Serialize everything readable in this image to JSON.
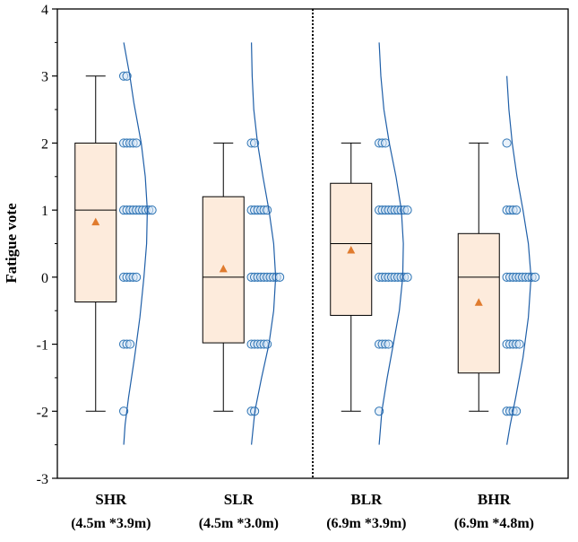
{
  "chart_data": {
    "type": "box",
    "ylabel": "Fatigue vote",
    "xlabel": "",
    "ylim": [
      -3,
      4
    ],
    "yticks": [
      "-3",
      "-2",
      "-1",
      "0",
      "1",
      "2",
      "3",
      "4"
    ],
    "separator_after_index": 1,
    "colors": {
      "box_fill": "#fdebdc",
      "box_stroke": "#000000",
      "mean_marker": "#e07b2e",
      "points": "#2f75b5",
      "curve": "#1f5fa8",
      "separator": "#000000"
    },
    "groups": [
      {
        "name": "SHR",
        "dims": "(4.5m *3.9m)",
        "whisker_low": -2,
        "q1": -0.37,
        "median": 1,
        "q3": 2,
        "whisker_high": 3,
        "mean": 0.82,
        "points": [
          {
            "y": 3,
            "n": 2
          },
          {
            "y": 2,
            "n": 5
          },
          {
            "y": 1,
            "n": 10
          },
          {
            "y": 0,
            "n": 5
          },
          {
            "y": -1,
            "n": 3
          },
          {
            "y": -2,
            "n": 1
          }
        ],
        "density": [
          [
            -2.5,
            0
          ],
          [
            -2.2,
            0.2
          ],
          [
            -1.8,
            0.7
          ],
          [
            -1.2,
            1.6
          ],
          [
            -0.6,
            2.4
          ],
          [
            0.0,
            3.0
          ],
          [
            0.5,
            3.4
          ],
          [
            1.0,
            3.5
          ],
          [
            1.5,
            3.2
          ],
          [
            2.0,
            2.6
          ],
          [
            2.6,
            1.5
          ],
          [
            3.0,
            0.9
          ],
          [
            3.5,
            0
          ]
        ]
      },
      {
        "name": "SLR",
        "dims": "(4.5m *3.0m)",
        "whisker_low": -2,
        "q1": -0.98,
        "median": 0,
        "q3": 1.2,
        "whisker_high": 2,
        "mean": 0.12,
        "points": [
          {
            "y": 2,
            "n": 2
          },
          {
            "y": 1,
            "n": 6
          },
          {
            "y": 0,
            "n": 10
          },
          {
            "y": -1,
            "n": 6
          },
          {
            "y": -2,
            "n": 2
          }
        ],
        "density": [
          [
            -2.5,
            0
          ],
          [
            -2.0,
            0.5
          ],
          [
            -1.5,
            1.5
          ],
          [
            -1.0,
            2.6
          ],
          [
            -0.5,
            3.3
          ],
          [
            0.0,
            3.6
          ],
          [
            0.5,
            3.3
          ],
          [
            1.0,
            2.6
          ],
          [
            1.5,
            1.7
          ],
          [
            2.0,
            0.9
          ],
          [
            2.5,
            0.35
          ],
          [
            3.0,
            0.1
          ],
          [
            3.5,
            0
          ]
        ]
      },
      {
        "name": "BLR",
        "dims": "(6.9m *3.9m)",
        "whisker_low": -2,
        "q1": -0.57,
        "median": 0.5,
        "q3": 1.4,
        "whisker_high": 2,
        "mean": 0.4,
        "points": [
          {
            "y": 2,
            "n": 3
          },
          {
            "y": 1,
            "n": 10
          },
          {
            "y": 0,
            "n": 10
          },
          {
            "y": -1,
            "n": 4
          },
          {
            "y": -2,
            "n": 1
          }
        ],
        "density": [
          [
            -2.5,
            0
          ],
          [
            -2.0,
            0.4
          ],
          [
            -1.5,
            1.2
          ],
          [
            -1.0,
            2.1
          ],
          [
            -0.5,
            3.0
          ],
          [
            0.0,
            3.5
          ],
          [
            0.5,
            3.6
          ],
          [
            1.0,
            3.3
          ],
          [
            1.5,
            2.5
          ],
          [
            2.0,
            1.5
          ],
          [
            2.5,
            0.7
          ],
          [
            3.0,
            0.25
          ],
          [
            3.5,
            0
          ]
        ]
      },
      {
        "name": "BHR",
        "dims": "(6.9m *4.8m)",
        "whisker_low": -2,
        "q1": -1.43,
        "median": 0,
        "q3": 0.65,
        "whisker_high": 2,
        "mean": -0.38,
        "points": [
          {
            "y": 2,
            "n": 1
          },
          {
            "y": 1,
            "n": 4
          },
          {
            "y": 0,
            "n": 10
          },
          {
            "y": -1,
            "n": 5
          },
          {
            "y": -2,
            "n": 4
          }
        ],
        "density": [
          [
            -2.5,
            0
          ],
          [
            -2.2,
            0.5
          ],
          [
            -1.8,
            1.3
          ],
          [
            -1.2,
            2.4
          ],
          [
            -0.6,
            3.2
          ],
          [
            0.0,
            3.6
          ],
          [
            0.5,
            3.2
          ],
          [
            1.0,
            2.4
          ],
          [
            1.5,
            1.5
          ],
          [
            2.0,
            0.8
          ],
          [
            2.5,
            0.3
          ],
          [
            3.0,
            0
          ]
        ]
      }
    ]
  }
}
